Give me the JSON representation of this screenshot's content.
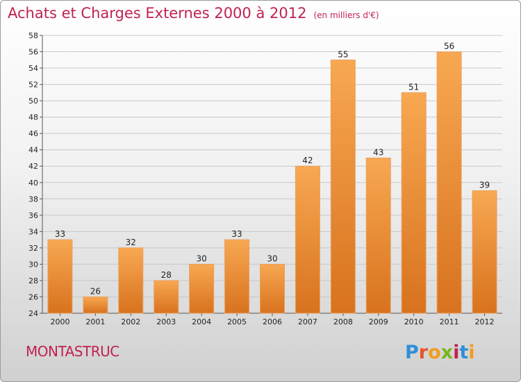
{
  "header": {
    "title": "Achats et Charges Externes 2000 à 2012",
    "subtitle": "(en milliers d'€)"
  },
  "footer": {
    "commune": "MONTASTRUC",
    "logo_text": "Proxiti",
    "logo_colors": [
      "#2e8fd8",
      "#e8532a",
      "#f39c1f",
      "#7ab51d",
      "#c0224f",
      "#2e8fd8",
      "#f39c1f"
    ]
  },
  "colors": {
    "title": "#c0224f",
    "bar_top": "#f8a852",
    "bar_bottom": "#d8721e"
  },
  "chart_data": {
    "type": "bar",
    "title": "Achats et Charges Externes 2000 à 2012",
    "subtitle": "(en milliers d'€)",
    "xlabel": "",
    "ylabel": "",
    "categories": [
      "2000",
      "2001",
      "2002",
      "2003",
      "2004",
      "2005",
      "2006",
      "2007",
      "2008",
      "2009",
      "2010",
      "2011",
      "2012"
    ],
    "values": [
      33,
      26,
      32,
      28,
      30,
      33,
      30,
      42,
      55,
      43,
      51,
      56,
      39
    ],
    "ylim": [
      24,
      58
    ],
    "yticks": [
      24,
      26,
      28,
      30,
      32,
      34,
      36,
      38,
      40,
      42,
      44,
      46,
      48,
      50,
      52,
      54,
      56,
      58
    ],
    "grid": true,
    "data_labels": true
  }
}
